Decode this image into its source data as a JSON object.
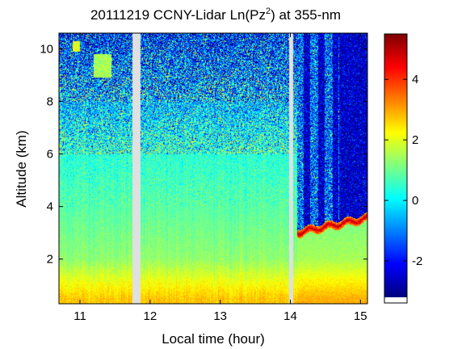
{
  "chart_data": {
    "type": "heatmap",
    "title": {
      "prefix": "20111219 CCNY-Lidar Ln(Pz",
      "superscript": "2",
      "suffix": ") at 355-nm"
    },
    "xlabel": "Local time (hour)",
    "ylabel": "Altitude (km)",
    "xlim": [
      10.7,
      15.1
    ],
    "ylim": [
      0.3,
      10.6
    ],
    "xticks": [
      11,
      12,
      13,
      14,
      15
    ],
    "yticks": [
      2,
      4,
      6,
      8,
      10
    ],
    "xtick_labels": [
      "11",
      "12",
      "13",
      "14",
      "15"
    ],
    "ytick_labels": [
      "2",
      "4",
      "6",
      "8",
      "10"
    ],
    "colorbar": {
      "range": [
        -3.2,
        5.5
      ],
      "ticks": [
        -2,
        0,
        2,
        4
      ],
      "tick_labels": [
        "-2",
        "0",
        "2",
        "4"
      ],
      "colormap": "jet"
    },
    "data_gaps_hour": [
      [
        11.75,
        11.86
      ],
      [
        13.98,
        14.04
      ]
    ],
    "features": [
      {
        "type": "cloud-layer",
        "time_range_hour": [
          14.1,
          15.1
        ],
        "altitude_km": [
          3.0,
          3.7
        ],
        "value": 5.0
      },
      {
        "type": "aerosol-patch",
        "time_range_hour": [
          11.2,
          11.45
        ],
        "altitude_km": [
          8.9,
          9.8
        ],
        "value": 1.5
      },
      {
        "type": "aerosol-patch",
        "time_range_hour": [
          10.9,
          11.0
        ],
        "altitude_km": [
          9.9,
          10.3
        ],
        "value": 2.0
      }
    ],
    "profile_summary": [
      {
        "altitude_km": 0.5,
        "value": 2.7
      },
      {
        "altitude_km": 2.0,
        "value": 1.3
      },
      {
        "altitude_km": 4.0,
        "value": 0.8
      },
      {
        "altitude_km": 6.0,
        "value": 0.4
      },
      {
        "altitude_km": 8.0,
        "value": -0.5
      },
      {
        "altitude_km": 10.0,
        "value": -1.5
      }
    ]
  }
}
